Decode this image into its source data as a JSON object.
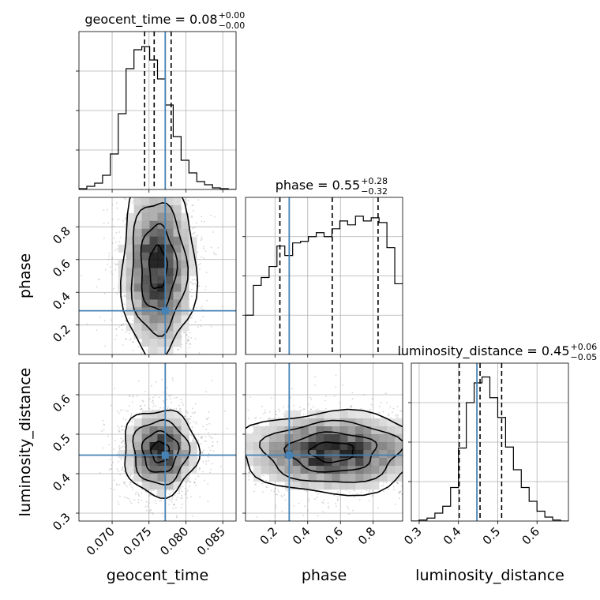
{
  "chart_data": {
    "type": "corner",
    "parameters": [
      "geocent_time",
      "phase",
      "luminosity_distance"
    ],
    "truth": {
      "geocent_time": 0.0772,
      "phase": 0.287,
      "luminosity_distance": 0.447
    },
    "ranges": {
      "geocent_time": [
        0.0655,
        0.0868
      ],
      "phase": [
        0.02,
        0.98
      ],
      "luminosity_distance": [
        0.28,
        0.68
      ]
    },
    "ticks": {
      "geocent_time": {
        "values": [
          0.07,
          0.075,
          0.08,
          0.085
        ],
        "labels": [
          "0.070",
          "0.075",
          "0.080",
          "0.085"
        ]
      },
      "phase": {
        "values": [
          0.2,
          0.4,
          0.6,
          0.8
        ],
        "labels": [
          "0.2",
          "0.4",
          "0.6",
          "0.8"
        ]
      },
      "luminosity_distance": {
        "values": [
          0.3,
          0.4,
          0.5,
          0.6
        ],
        "labels": [
          "0.3",
          "0.4",
          "0.5",
          "0.6"
        ]
      }
    },
    "axis_labels": {
      "x": [
        "geocent_time",
        "phase",
        "luminosity_distance"
      ],
      "y": [
        "phase",
        "luminosity_distance"
      ]
    },
    "grid": true,
    "diagonal": [
      {
        "parameter": "geocent_time",
        "title_main": "geocent_time = 0.08",
        "title_sup": "+0.00",
        "title_sub": "−0.00",
        "quantiles": [
          0.0744,
          0.0757,
          0.078
        ],
        "bin_edges": [
          0.0655,
          0.06657,
          0.06763,
          0.0687,
          0.06976,
          0.07083,
          0.07189,
          0.07296,
          0.07402,
          0.07509,
          0.07615,
          0.07722,
          0.07828,
          0.07935,
          0.08041,
          0.08148,
          0.08254,
          0.08361,
          0.08467,
          0.08574,
          0.0868
        ],
        "counts": [
          1,
          4,
          8,
          18,
          45,
          96,
          153,
          177,
          181,
          164,
          140,
          107,
          67,
          37,
          21,
          10,
          6,
          2,
          1,
          0
        ],
        "ylim": [
          0,
          200
        ]
      },
      {
        "parameter": "phase",
        "title_main": "phase = 0.55",
        "title_sup": "+0.28",
        "title_sub": "−0.32",
        "quantiles": [
          0.23,
          0.55,
          0.83
        ],
        "bin_edges": [
          0.02,
          0.068,
          0.116,
          0.164,
          0.212,
          0.26,
          0.308,
          0.356,
          0.404,
          0.452,
          0.5,
          0.548,
          0.596,
          0.644,
          0.692,
          0.74,
          0.788,
          0.836,
          0.884,
          0.932,
          0.98
        ],
        "counts": [
          50,
          88,
          98,
          112,
          138,
          126,
          142,
          144,
          150,
          155,
          150,
          160,
          170,
          165,
          176,
          170,
          174,
          168,
          136,
          90
        ],
        "ylim": [
          0,
          200
        ]
      },
      {
        "parameter": "luminosity_distance",
        "title_main": "luminosity_distance = 0.45",
        "title_sup": "+0.06",
        "title_sub": "−0.05",
        "quantiles": [
          0.402,
          0.455,
          0.51
        ],
        "bin_edges": [
          0.28,
          0.3,
          0.32,
          0.34,
          0.36,
          0.38,
          0.4,
          0.42,
          0.44,
          0.46,
          0.48,
          0.5,
          0.52,
          0.54,
          0.56,
          0.58,
          0.6,
          0.62,
          0.64,
          0.66,
          0.68
        ],
        "counts": [
          0,
          1,
          3,
          8,
          15,
          34,
          74,
          120,
          140,
          146,
          125,
          105,
          75,
          52,
          34,
          20,
          10,
          4,
          1,
          0
        ],
        "ylim": [
          0,
          160
        ]
      }
    ],
    "off_diagonal": [
      {
        "x": "geocent_time",
        "y": "phase",
        "center": [
          0.0762,
          0.55
        ],
        "spread": [
          0.0024,
          0.26
        ],
        "contour_levels": 4
      },
      {
        "x": "geocent_time",
        "y": "luminosity_distance",
        "center": [
          0.0765,
          0.455
        ],
        "spread": [
          0.0024,
          0.052
        ],
        "contour_levels": 4
      },
      {
        "x": "phase",
        "y": "luminosity_distance",
        "center": [
          0.55,
          0.455
        ],
        "spread": [
          0.27,
          0.05
        ],
        "contour_levels": 4
      }
    ],
    "colors": {
      "truth": "#4682b4",
      "line": "#000000",
      "grid": "#b0b0b0",
      "scatter": "#888888"
    }
  }
}
